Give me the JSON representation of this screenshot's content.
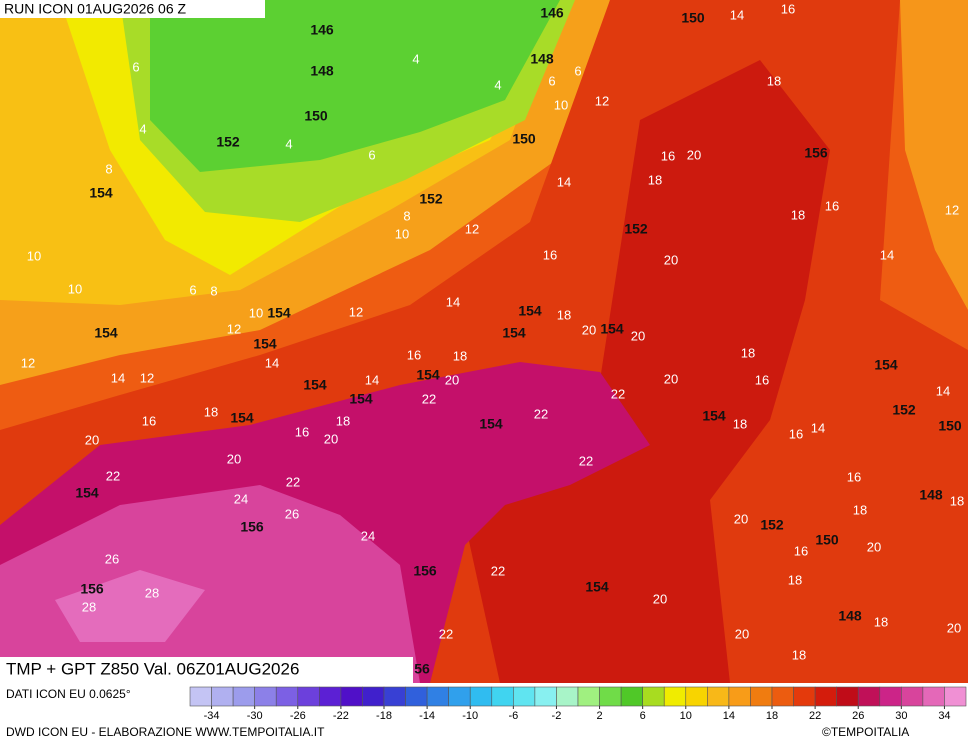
{
  "header": {
    "run": "RUN ICON 01AUG2026 06 Z",
    "title": "TMP + GPT Z850 Val. 06Z01AUG2026",
    "source": "DATI ICON EU 0.0625°",
    "credit": "DWD ICON EU - ELABORAZIONE WWW.TEMPOITALIA.IT",
    "copyright": "©TEMPOITALIA"
  },
  "colorbar": {
    "range": [
      -36,
      36
    ],
    "ticks": [
      -34,
      -30,
      -26,
      -22,
      -18,
      -14,
      -10,
      -6,
      -2,
      2,
      6,
      10,
      14,
      18,
      22,
      26,
      30,
      34
    ],
    "colors": [
      "#c4c4f4",
      "#b0b0f0",
      "#9c9cec",
      "#8c80e8",
      "#7c60e4",
      "#6c40dc",
      "#5c20d4",
      "#5010c8",
      "#4020cc",
      "#3840d4",
      "#3060dc",
      "#3080e4",
      "#30a0ec",
      "#30bcf0",
      "#40d4f0",
      "#60e4f0",
      "#88f0f0",
      "#a8f4c8",
      "#a0f080",
      "#70dc48",
      "#50c828",
      "#a8dc20",
      "#f0ec00",
      "#f8d400",
      "#f8b818",
      "#f89c18",
      "#f07c10",
      "#ec5c10",
      "#e43a0c",
      "#d41c0c",
      "#c00c18",
      "#c01058",
      "#cc2488",
      "#d8449c",
      "#e468b8",
      "#f090d4"
    ]
  },
  "map": {
    "labels": [
      "146",
      "146",
      "150",
      "14",
      "16",
      "6",
      "148",
      "4",
      "148",
      "4",
      "6",
      "6",
      "10",
      "12",
      "18",
      "150",
      "4",
      "152",
      "4",
      "150",
      "6",
      "16",
      "20",
      "156",
      "8",
      "154",
      "18",
      "14",
      "152",
      "8",
      "10",
      "12",
      "152",
      "18",
      "16",
      "12",
      "10",
      "16",
      "20",
      "14",
      "10",
      "6",
      "8",
      "10",
      "154",
      "12",
      "14",
      "154",
      "18",
      "154",
      "20",
      "154",
      "20",
      "154",
      "12",
      "154",
      "18",
      "12",
      "14",
      "16",
      "18",
      "154",
      "14",
      "12",
      "154",
      "14",
      "154",
      "20",
      "20",
      "16",
      "14",
      "154",
      "22",
      "22",
      "152",
      "18",
      "16",
      "154",
      "18",
      "154",
      "22",
      "154",
      "18",
      "16",
      "14",
      "150",
      "20",
      "16",
      "20",
      "20",
      "22",
      "22",
      "22",
      "16",
      "154",
      "24",
      "148",
      "18",
      "18",
      "26",
      "156",
      "20",
      "152",
      "150",
      "20",
      "24",
      "16",
      "26",
      "156",
      "22",
      "18",
      "156",
      "28",
      "154",
      "28",
      "20",
      "148",
      "18",
      "20",
      "22",
      "20",
      "18",
      "56"
    ]
  }
}
